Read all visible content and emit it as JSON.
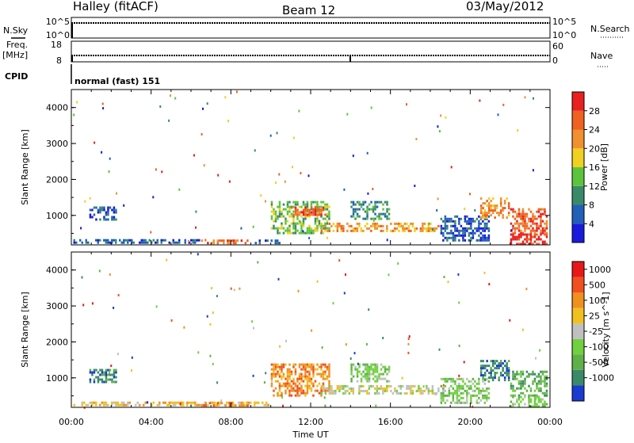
{
  "header": {
    "station": "Halley (fitACF)",
    "beam": "Beam 12",
    "date": "03/May/2012"
  },
  "top_panels": {
    "nsky_label": "N.Sky",
    "nsky_ticks": [
      "10^5",
      "10^0"
    ],
    "nsearch_label": "N.Search",
    "nsearch_ticks": [
      "10^5",
      "10^0"
    ],
    "freq_label_1": "Freq.",
    "freq_label_2": "[MHz]",
    "freq_ticks": [
      "18",
      "8"
    ],
    "nave_label": "Nave",
    "nave_ticks": [
      "60",
      "0"
    ],
    "cpid_label": "CPID",
    "cpid_value": "normal (fast) 151"
  },
  "chart_data": [
    {
      "type": "heatmap",
      "name": "power",
      "ylabel": "Slant Range [km]",
      "ylim": [
        180,
        4500
      ],
      "yticks": [
        "1000",
        "2000",
        "3000",
        "4000"
      ],
      "xlim": [
        0,
        24
      ],
      "colorbar_label": "Power [dB]",
      "colorbar_ticks": [
        "4",
        "8",
        "12",
        "16",
        "20",
        "24",
        "28"
      ],
      "colors": [
        "#1a1adc",
        "#2060b8",
        "#3a8a6a",
        "#5cc43c",
        "#f0d020",
        "#f09030",
        "#f06020",
        "#e82020"
      ],
      "regions": [
        {
          "t0": 0.1,
          "t1": 6.5,
          "r0": 200,
          "r1": 340,
          "v": 1
        },
        {
          "t0": 6.5,
          "t1": 9.0,
          "r0": 220,
          "r1": 330,
          "v": 6
        },
        {
          "t0": 9.0,
          "t1": 10.5,
          "r0": 200,
          "r1": 330,
          "v": 1
        },
        {
          "t0": 0.9,
          "t1": 2.3,
          "r0": 850,
          "r1": 1250,
          "v": 1
        },
        {
          "t0": 10.0,
          "t1": 13.0,
          "r0": 450,
          "r1": 1400,
          "v": 3
        },
        {
          "t0": 11.0,
          "t1": 12.8,
          "r0": 1000,
          "r1": 1250,
          "v": 6
        },
        {
          "t0": 12.5,
          "t1": 18.5,
          "r0": 550,
          "r1": 800,
          "v": 5
        },
        {
          "t0": 14.0,
          "t1": 16.0,
          "r0": 850,
          "r1": 1400,
          "v": 2
        },
        {
          "t0": 18.5,
          "t1": 21.0,
          "r0": 300,
          "r1": 1000,
          "v": 1
        },
        {
          "t0": 20.5,
          "t1": 22.0,
          "r0": 900,
          "r1": 1500,
          "v": 5
        },
        {
          "t0": 22.0,
          "t1": 23.9,
          "r0": 500,
          "r1": 1200,
          "v": 6
        },
        {
          "t0": 22.0,
          "t1": 23.9,
          "r0": 200,
          "r1": 500,
          "v": 7
        }
      ]
    },
    {
      "type": "heatmap",
      "name": "velocity",
      "ylabel": "Slant Range [km]",
      "ylim": [
        180,
        4500
      ],
      "yticks": [
        "1000",
        "2000",
        "3000",
        "4000"
      ],
      "xlim": [
        0,
        24
      ],
      "xlabel": "Time UT",
      "xticks": [
        "00:00",
        "04:00",
        "08:00",
        "12:00",
        "16:00",
        "20:00",
        "00:00"
      ],
      "colorbar_label": "Velocity [m s^-1]",
      "colorbar_ticks": [
        "1000",
        "500",
        "100",
        "25",
        "-25",
        "-100",
        "-500",
        "-1000"
      ],
      "colors": [
        "#1a3ad0",
        "#3a8a6a",
        "#60b04a",
        "#70d040",
        "#c0c0c0",
        "#f0c020",
        "#f09020",
        "#f05020",
        "#e81818"
      ],
      "regions": [
        {
          "t0": 0.1,
          "t1": 10.0,
          "r0": 200,
          "r1": 340,
          "v": 5
        },
        {
          "t0": 6.5,
          "t1": 9.0,
          "r0": 220,
          "r1": 330,
          "v": 6
        },
        {
          "t0": 0.9,
          "t1": 2.3,
          "r0": 850,
          "r1": 1250,
          "v": 1
        },
        {
          "t0": 10.0,
          "t1": 13.0,
          "r0": 450,
          "r1": 1400,
          "v": 6
        },
        {
          "t0": 12.5,
          "t1": 18.5,
          "r0": 550,
          "r1": 800,
          "v": 4
        },
        {
          "t0": 14.0,
          "t1": 16.0,
          "r0": 850,
          "r1": 1400,
          "v": 3
        },
        {
          "t0": 18.5,
          "t1": 21.0,
          "r0": 300,
          "r1": 1000,
          "v": 3
        },
        {
          "t0": 20.5,
          "t1": 22.0,
          "r0": 900,
          "r1": 1500,
          "v": 1
        },
        {
          "t0": 22.0,
          "t1": 23.9,
          "r0": 500,
          "r1": 1200,
          "v": 2
        },
        {
          "t0": 22.0,
          "t1": 23.9,
          "r0": 200,
          "r1": 500,
          "v": 3
        }
      ]
    }
  ]
}
